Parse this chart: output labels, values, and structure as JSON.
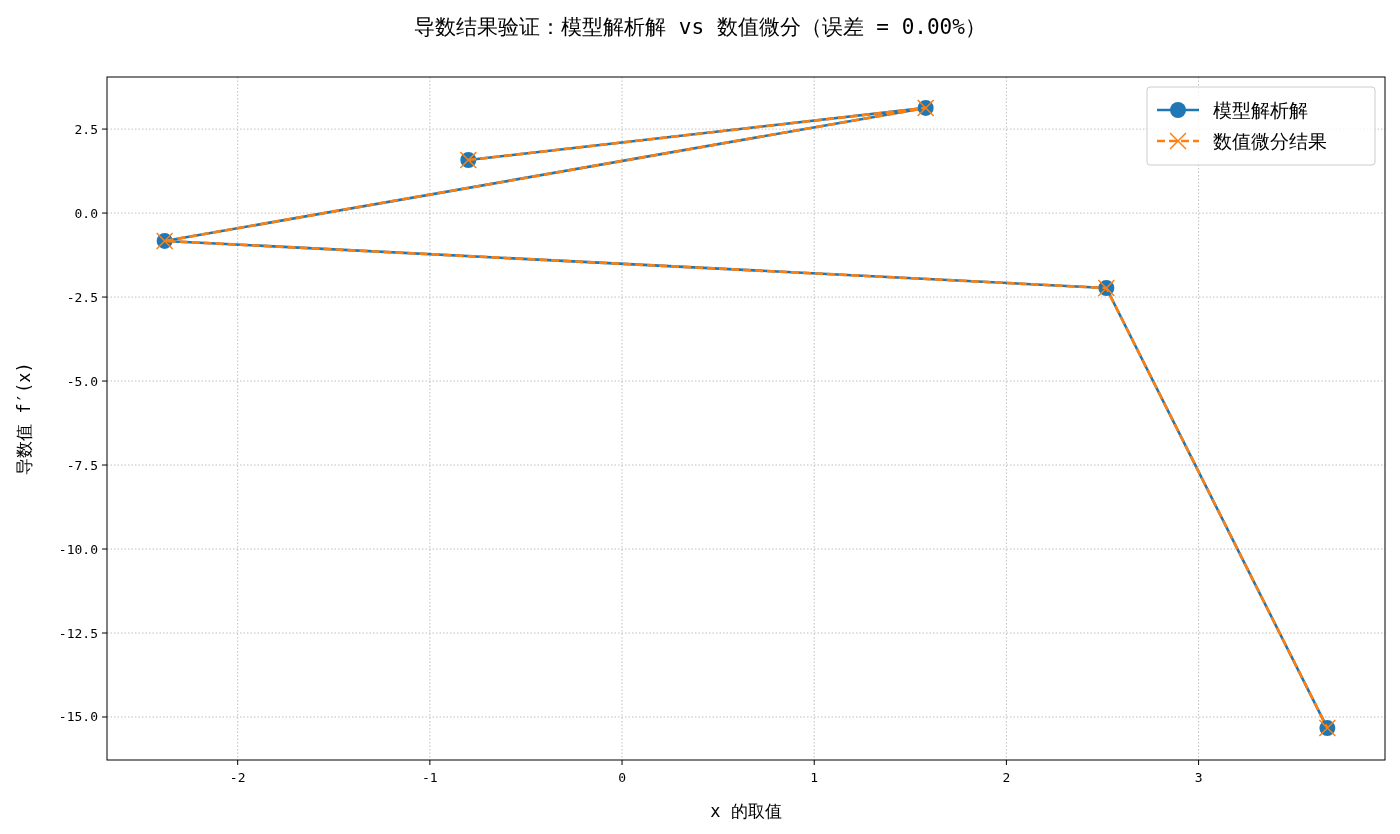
{
  "chart_data": {
    "type": "line",
    "title": "导数结果验证：模型解析解 vs 数值微分（误差 = 0.00%）",
    "xlabel": "x 的取值",
    "ylabel": "导数值 f′(x)",
    "x": [
      -0.8,
      1.58,
      -2.38,
      2.52,
      3.67
    ],
    "series": [
      {
        "name": "模型解析解",
        "color": "#1f77b4",
        "marker": "circle",
        "line_style": "solid",
        "values": [
          1.58,
          3.13,
          -0.83,
          -2.23,
          -15.33
        ]
      },
      {
        "name": "数值微分结果",
        "color": "#ff7f0e",
        "marker": "cross",
        "line_style": "dashed",
        "values": [
          1.58,
          3.13,
          -0.83,
          -2.23,
          -15.33
        ]
      }
    ],
    "xlim": [
      -2.68,
      3.97
    ],
    "ylim": [
      -16.28,
      4.05
    ],
    "xticks": [
      -2,
      -1,
      0,
      1,
      2,
      3
    ],
    "yticks": [
      {
        "value": 2.5,
        "label": "2.5"
      },
      {
        "value": 0,
        "label": "0.0"
      },
      {
        "value": -2.5,
        "label": "-2.5"
      },
      {
        "value": -5,
        "label": "-5.0"
      },
      {
        "value": -7.5,
        "label": "-7.5"
      },
      {
        "value": -10,
        "label": "-10.0"
      },
      {
        "value": -12.5,
        "label": "-12.5"
      },
      {
        "value": -15,
        "label": "-15.0"
      }
    ],
    "grid": true,
    "legend": "top right"
  }
}
